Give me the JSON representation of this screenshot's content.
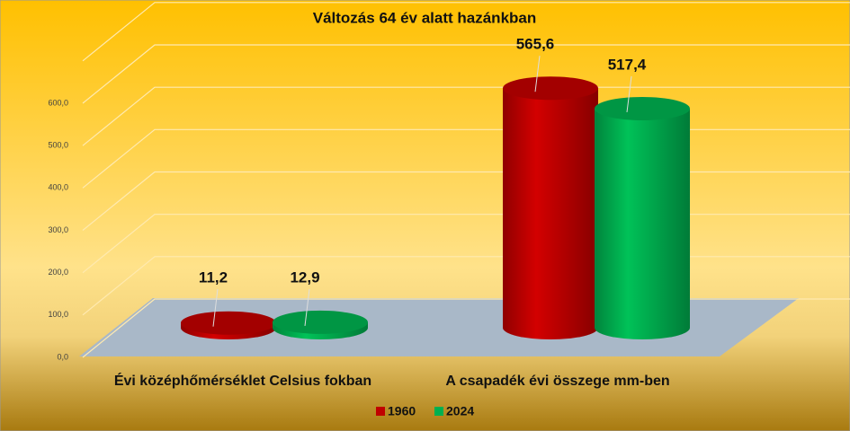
{
  "chart_data": {
    "type": "bar3d",
    "title": "Változás 64 év alatt hazánkban",
    "categories": [
      "Évi középhőmérséklet Celsius fokban",
      "A csapadék évi összege mm-ben"
    ],
    "series": [
      {
        "name": "1960",
        "color": "#c00000",
        "values": [
          11.2,
          565.6
        ],
        "value_labels": [
          "11,2",
          "565,6"
        ]
      },
      {
        "name": "2024",
        "color": "#00b050",
        "values": [
          12.9,
          517.4
        ],
        "value_labels": [
          "12,9",
          "517,4"
        ]
      }
    ],
    "ylim": [
      0,
      700
    ],
    "yticks": [
      {
        "value": 0,
        "label": "0,0"
      },
      {
        "value": 100,
        "label": "100,0"
      },
      {
        "value": 200,
        "label": "200,0"
      },
      {
        "value": 300,
        "label": "300,0"
      },
      {
        "value": 400,
        "label": "400,0"
      },
      {
        "value": 500,
        "label": "500,0"
      },
      {
        "value": 600,
        "label": "600,0"
      }
    ],
    "grid": true
  }
}
